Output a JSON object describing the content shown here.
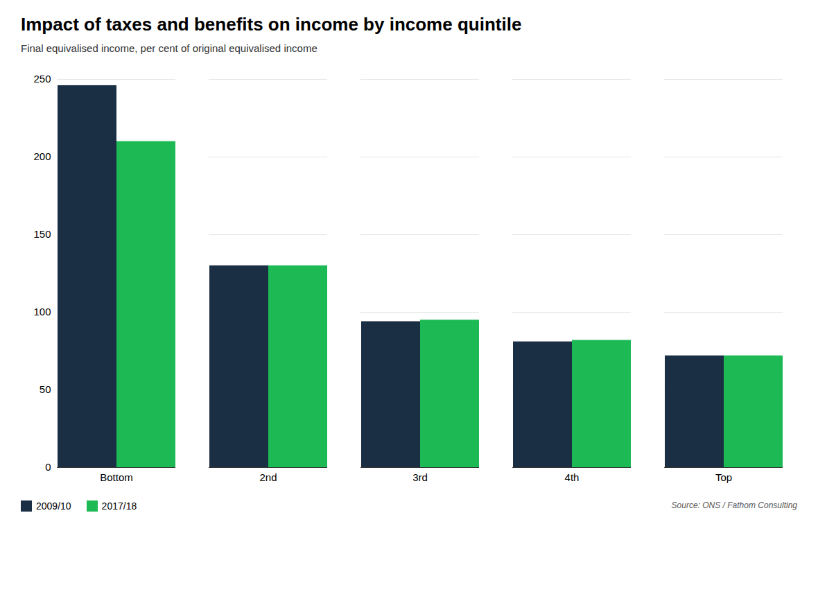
{
  "chart_data": {
    "type": "bar",
    "title": "Impact of taxes and benefits on income by income quintile",
    "subtitle": "Final equivalised income, per cent of original equivalised income",
    "caption": "Source: ONS / Fathom Consulting",
    "categories": [
      "Bottom",
      "2nd",
      "3rd",
      "4th",
      "Top"
    ],
    "series": [
      {
        "name": "2009/10",
        "color": "#1a2e44",
        "values": [
          246,
          130,
          94,
          81,
          72
        ]
      },
      {
        "name": "2017/18",
        "color": "#1db954",
        "values": [
          210,
          130,
          95,
          82,
          72
        ]
      }
    ],
    "ylim": [
      0,
      250
    ],
    "yticks": [
      0,
      50,
      100,
      150,
      200,
      250
    ],
    "grid": true,
    "legend": "bottom"
  }
}
